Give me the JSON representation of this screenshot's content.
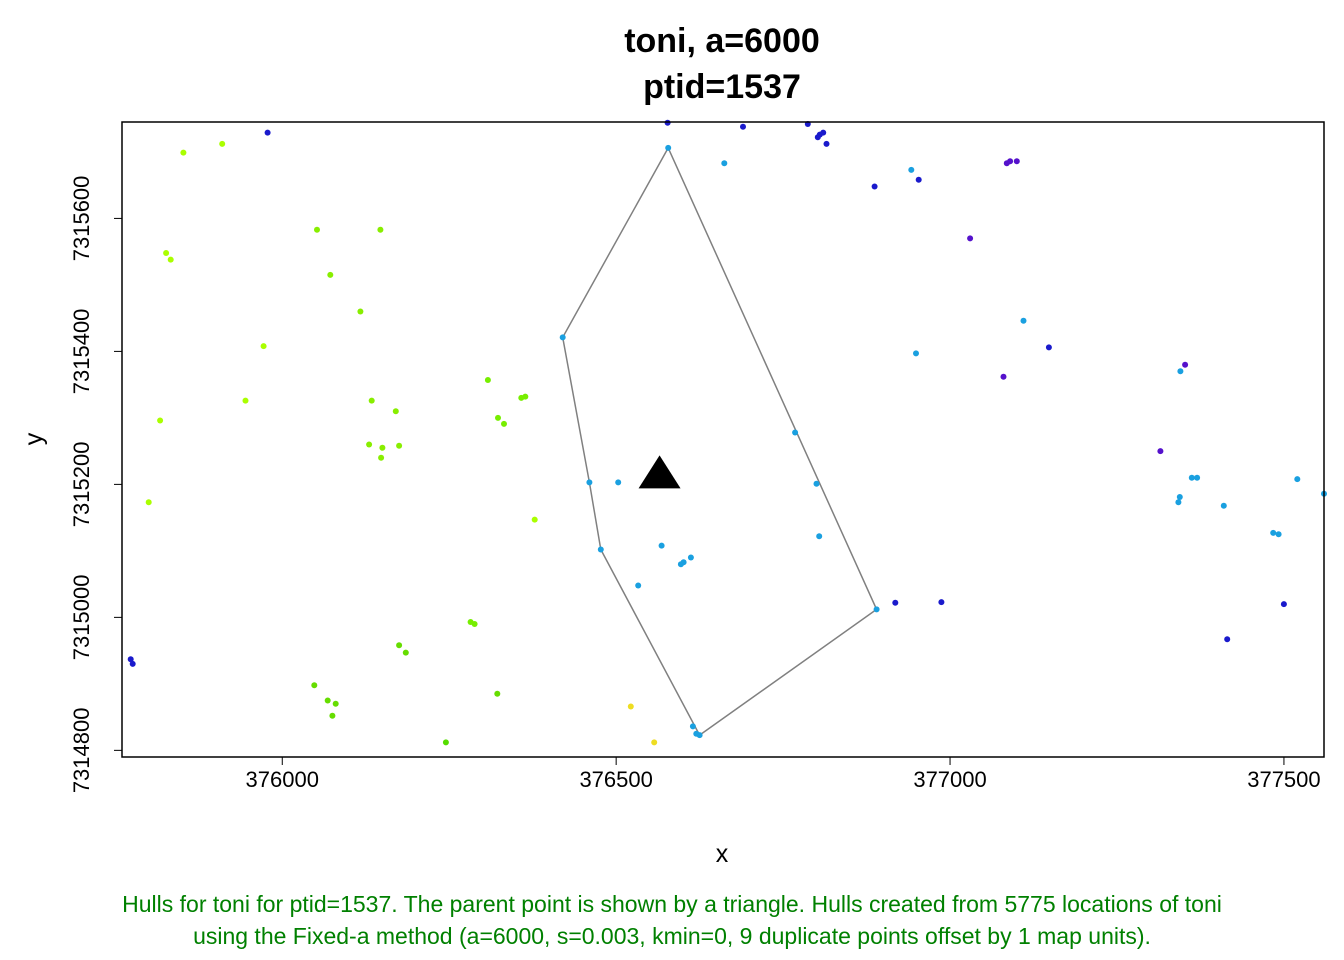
{
  "chart_data": {
    "type": "scatter",
    "title": "toni, a=6000",
    "subtitle": "ptid=1537",
    "xlabel": "x",
    "ylabel": "y",
    "xlim": [
      375760,
      377560
    ],
    "ylim": [
      7314790,
      7315745
    ],
    "x_ticks": [
      "376000",
      "376500",
      "377000",
      "377500"
    ],
    "y_ticks": [
      "7314800",
      "7315000",
      "7315200",
      "7315400",
      "7315600"
    ],
    "grid": false,
    "hull_color": "#808080",
    "hull": [
      [
        376578,
        7315706
      ],
      [
        376420,
        7315421
      ],
      [
        376460,
        7315203
      ],
      [
        376477,
        7315102
      ],
      [
        376625,
        7314823
      ],
      [
        376890,
        7315012
      ],
      [
        376578,
        7315706
      ]
    ],
    "parent_point": {
      "x": 376565,
      "y": 7315215,
      "marker": "triangle",
      "color": "#000000"
    },
    "points": [
      {
        "x": 376578,
        "y": 7315706,
        "color": "#1aa0e0"
      },
      {
        "x": 376420,
        "y": 7315421,
        "color": "#1aa0e0"
      },
      {
        "x": 376460,
        "y": 7315203,
        "color": "#1aa0e0"
      },
      {
        "x": 376477,
        "y": 7315102,
        "color": "#1aa0e0"
      },
      {
        "x": 376615,
        "y": 7314836,
        "color": "#1aa0e0"
      },
      {
        "x": 376620,
        "y": 7314825,
        "color": "#1aa0e0"
      },
      {
        "x": 376625,
        "y": 7314823,
        "color": "#1aa0e0"
      },
      {
        "x": 376890,
        "y": 7315012,
        "color": "#1aa0e0"
      },
      {
        "x": 376503,
        "y": 7315203,
        "color": "#1aa0e0"
      },
      {
        "x": 376568,
        "y": 7315108,
        "color": "#1aa0e0"
      },
      {
        "x": 376597,
        "y": 7315080,
        "color": "#1aa0e0"
      },
      {
        "x": 376601,
        "y": 7315083,
        "color": "#1aa0e0"
      },
      {
        "x": 376612,
        "y": 7315090,
        "color": "#1aa0e0"
      },
      {
        "x": 376533,
        "y": 7315048,
        "color": "#1aa0e0"
      },
      {
        "x": 376768,
        "y": 7315278,
        "color": "#1aa0e0"
      },
      {
        "x": 376800,
        "y": 7315201,
        "color": "#1aa0e0"
      },
      {
        "x": 376804,
        "y": 7315122,
        "color": "#1aa0e0"
      },
      {
        "x": 376662,
        "y": 7315683,
        "color": "#1aa0e0"
      },
      {
        "x": 376942,
        "y": 7315673,
        "color": "#1aa0e0"
      },
      {
        "x": 376949,
        "y": 7315397,
        "color": "#1aa0e0"
      },
      {
        "x": 377110,
        "y": 7315446,
        "color": "#1aa0e0"
      },
      {
        "x": 377345,
        "y": 7315370,
        "color": "#1aa0e0"
      },
      {
        "x": 377342,
        "y": 7315173,
        "color": "#1aa0e0"
      },
      {
        "x": 377344,
        "y": 7315181,
        "color": "#1aa0e0"
      },
      {
        "x": 377362,
        "y": 7315210,
        "color": "#1aa0e0"
      },
      {
        "x": 377370,
        "y": 7315210,
        "color": "#1aa0e0"
      },
      {
        "x": 377410,
        "y": 7315168,
        "color": "#1aa0e0"
      },
      {
        "x": 377484,
        "y": 7315127,
        "color": "#1aa0e0"
      },
      {
        "x": 377492,
        "y": 7315125,
        "color": "#1aa0e0"
      },
      {
        "x": 377520,
        "y": 7315208,
        "color": "#1aa0e0"
      },
      {
        "x": 377560,
        "y": 7315186,
        "color": "#1aa0e0"
      },
      {
        "x": 375978,
        "y": 7315729,
        "color": "#1a1acc"
      },
      {
        "x": 376577,
        "y": 7315744,
        "color": "#1a1acc"
      },
      {
        "x": 376690,
        "y": 7315738,
        "color": "#1a1acc"
      },
      {
        "x": 376787,
        "y": 7315742,
        "color": "#1a1acc"
      },
      {
        "x": 376805,
        "y": 7315726,
        "color": "#1a1acc"
      },
      {
        "x": 376810,
        "y": 7315729,
        "color": "#1a1acc"
      },
      {
        "x": 376802,
        "y": 7315722,
        "color": "#1a1acc"
      },
      {
        "x": 376815,
        "y": 7315712,
        "color": "#1a1acc"
      },
      {
        "x": 376887,
        "y": 7315648,
        "color": "#1a1acc"
      },
      {
        "x": 376953,
        "y": 7315658,
        "color": "#1a1acc"
      },
      {
        "x": 377148,
        "y": 7315406,
        "color": "#1a1acc"
      },
      {
        "x": 376918,
        "y": 7315022,
        "color": "#1a1acc"
      },
      {
        "x": 376987,
        "y": 7315023,
        "color": "#1a1acc"
      },
      {
        "x": 377500,
        "y": 7315020,
        "color": "#1a1acc"
      },
      {
        "x": 377415,
        "y": 7314967,
        "color": "#1a1acc"
      },
      {
        "x": 375773,
        "y": 7314937,
        "color": "#1a1acc"
      },
      {
        "x": 375776,
        "y": 7314930,
        "color": "#1a1acc"
      },
      {
        "x": 377085,
        "y": 7315683,
        "color": "#5511cc"
      },
      {
        "x": 377090,
        "y": 7315686,
        "color": "#5511cc"
      },
      {
        "x": 377100,
        "y": 7315686,
        "color": "#5511cc"
      },
      {
        "x": 377030,
        "y": 7315570,
        "color": "#5511cc"
      },
      {
        "x": 377080,
        "y": 7315362,
        "color": "#5511cc"
      },
      {
        "x": 377352,
        "y": 7315380,
        "color": "#5511cc"
      },
      {
        "x": 377315,
        "y": 7315250,
        "color": "#5511cc"
      },
      {
        "x": 375852,
        "y": 7315699,
        "color": "#aaff00"
      },
      {
        "x": 375910,
        "y": 7315712,
        "color": "#aaff00"
      },
      {
        "x": 375826,
        "y": 7315548,
        "color": "#aaff00"
      },
      {
        "x": 375833,
        "y": 7315538,
        "color": "#aaff00"
      },
      {
        "x": 375972,
        "y": 7315408,
        "color": "#aaff00"
      },
      {
        "x": 375945,
        "y": 7315326,
        "color": "#aaff00"
      },
      {
        "x": 375817,
        "y": 7315296,
        "color": "#aaff00"
      },
      {
        "x": 375800,
        "y": 7315173,
        "color": "#aaff00"
      },
      {
        "x": 376378,
        "y": 7315147,
        "color": "#aaff00"
      },
      {
        "x": 376052,
        "y": 7315583,
        "color": "#88ee00"
      },
      {
        "x": 376147,
        "y": 7315583,
        "color": "#88ee00"
      },
      {
        "x": 376072,
        "y": 7315515,
        "color": "#88ee00"
      },
      {
        "x": 376117,
        "y": 7315460,
        "color": "#88ee00"
      },
      {
        "x": 376134,
        "y": 7315326,
        "color": "#88ee00"
      },
      {
        "x": 376170,
        "y": 7315310,
        "color": "#88ee00"
      },
      {
        "x": 376130,
        "y": 7315260,
        "color": "#88ee00"
      },
      {
        "x": 376148,
        "y": 7315240,
        "color": "#88ee00"
      },
      {
        "x": 376150,
        "y": 7315255,
        "color": "#88ee00"
      },
      {
        "x": 376175,
        "y": 7315258,
        "color": "#88ee00"
      },
      {
        "x": 376308,
        "y": 7315357,
        "color": "#77ee00"
      },
      {
        "x": 376358,
        "y": 7315330,
        "color": "#77ee00"
      },
      {
        "x": 376364,
        "y": 7315332,
        "color": "#77ee00"
      },
      {
        "x": 376323,
        "y": 7315300,
        "color": "#77ee00"
      },
      {
        "x": 376332,
        "y": 7315291,
        "color": "#77ee00"
      },
      {
        "x": 376282,
        "y": 7314993,
        "color": "#77ee00"
      },
      {
        "x": 376288,
        "y": 7314990,
        "color": "#77ee00"
      },
      {
        "x": 376175,
        "y": 7314958,
        "color": "#66dd00"
      },
      {
        "x": 376185,
        "y": 7314947,
        "color": "#66dd00"
      },
      {
        "x": 376048,
        "y": 7314898,
        "color": "#66dd00"
      },
      {
        "x": 376068,
        "y": 7314875,
        "color": "#66dd00"
      },
      {
        "x": 376080,
        "y": 7314870,
        "color": "#66dd00"
      },
      {
        "x": 376075,
        "y": 7314852,
        "color": "#66dd00"
      },
      {
        "x": 376322,
        "y": 7314885,
        "color": "#66dd00"
      },
      {
        "x": 376245,
        "y": 7314812,
        "color": "#55dd00"
      },
      {
        "x": 376522,
        "y": 7314866,
        "color": "#eedd22"
      },
      {
        "x": 376557,
        "y": 7314812,
        "color": "#eedd22"
      }
    ]
  },
  "caption": {
    "line1": "Hulls for toni for ptid=1537. The parent point is shown by a triangle. Hulls created from 5775 locations of toni",
    "line2": "using the Fixed-a method (a=6000, s=0.003, kmin=0, 9 duplicate points offset by 1 map units)."
  }
}
